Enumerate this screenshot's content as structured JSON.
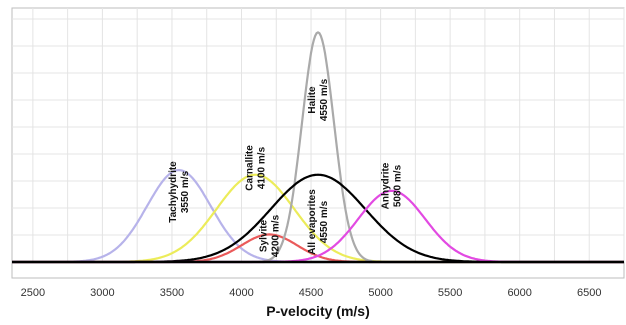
{
  "chart_data": {
    "type": "line",
    "title": "",
    "xlabel": "P-velocity (m/s)",
    "ylabel": "",
    "xlim": [
      2350,
      6750
    ],
    "ylim": [
      0,
      1.08
    ],
    "x_ticks": [
      "2500",
      "3000",
      "3500",
      "4000",
      "4500",
      "5000",
      "5500",
      "6000",
      "6500"
    ],
    "grid": true,
    "legend": "none",
    "series": [
      {
        "name": "Tachyhydrite",
        "velocity": "3550 m/s",
        "mean": 3550,
        "sd": 230,
        "peak": 0.4,
        "color": "#b7b3ea"
      },
      {
        "name": "Carnallite",
        "velocity": "4100 m/s",
        "mean": 4100,
        "sd": 280,
        "peak": 0.38,
        "color": "#ecec5a"
      },
      {
        "name": "Sylvite",
        "velocity": "4200 m/s",
        "mean": 4200,
        "sd": 200,
        "peak": 0.12,
        "color": "#ea5a5a"
      },
      {
        "name": "Halite",
        "velocity": "4550 m/s",
        "mean": 4550,
        "sd": 115,
        "peak": 1.0,
        "color": "#aaaaaa"
      },
      {
        "name": "All evaporites",
        "velocity": "4550 m/s",
        "mean": 4550,
        "sd": 340,
        "peak": 0.38,
        "color": "#000000"
      },
      {
        "name": "Anhydrite",
        "velocity": "5080 m/s",
        "mean": 5080,
        "sd": 240,
        "peak": 0.31,
        "color": "#e24ae2"
      }
    ]
  }
}
